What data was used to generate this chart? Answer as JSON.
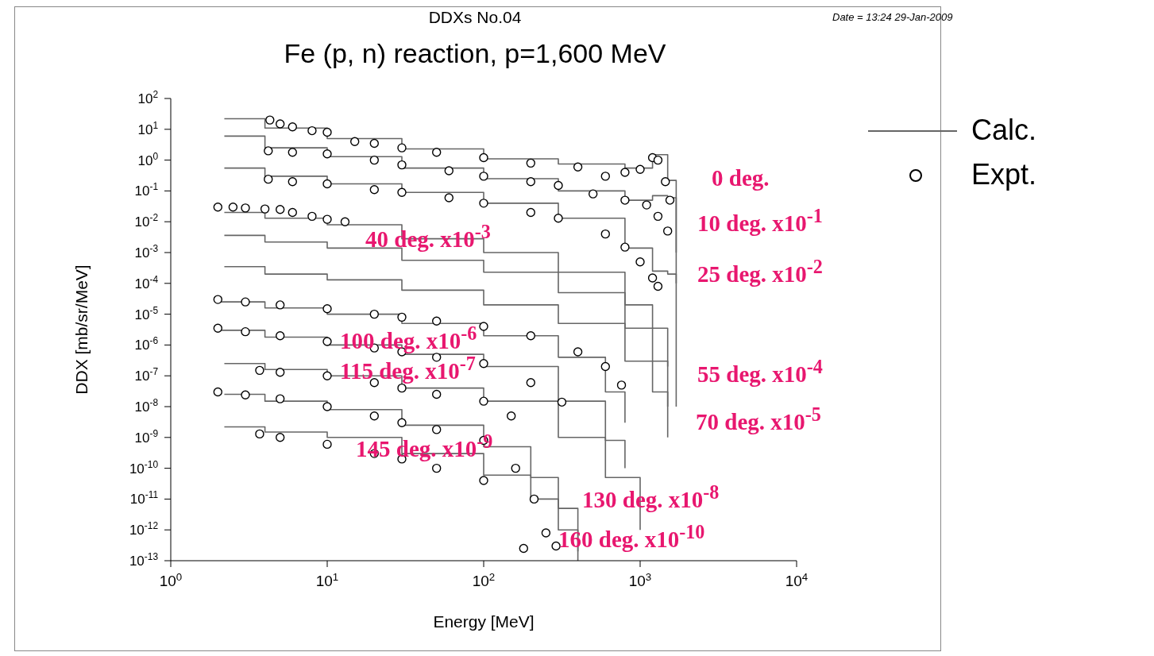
{
  "chart_data": {
    "type": "step",
    "title": "DDXs No.04",
    "subtitle": "Fe (p, n) reaction, p=1,600 MeV",
    "xlabel": "Energy [MeV]",
    "ylabel": "DDX [mb/sr/MeV]",
    "log": "xy",
    "legend": "right",
    "marker": "circle",
    "xlim": [
      1,
      10000
    ],
    "xticks": [
      {
        "value": 1,
        "label": "10$^{0}$"
      },
      {
        "value": 10,
        "label": "10$^{1}$"
      },
      {
        "value": 100,
        "label": "10$^{2}$"
      },
      {
        "value": 1000,
        "label": "10$^{3}$"
      },
      {
        "value": 10000,
        "label": "10$^{4}$"
      }
    ],
    "ylim": [
      1e-13,
      100
    ],
    "yticks": [
      {
        "value": 1e-13,
        "label": "10$^{-13}$"
      },
      {
        "value": 1e-12,
        "label": "10$^{-12}$"
      },
      {
        "value": 1e-11,
        "label": "10$^{-11}$"
      },
      {
        "value": 1e-10,
        "label": "10$^{-10}$"
      },
      {
        "value": 1e-09,
        "label": "10$^{-9}$"
      },
      {
        "value": 1e-08,
        "label": "10$^{-8}$"
      },
      {
        "value": 1e-07,
        "label": "10$^{-7}$"
      },
      {
        "value": 1e-06,
        "label": "10$^{-6}$"
      },
      {
        "value": 1e-05,
        "label": "10$^{-5}$"
      },
      {
        "value": 0.0001,
        "label": "10$^{-4}$"
      },
      {
        "value": 0.001,
        "label": "10$^{-3}$"
      },
      {
        "value": 0.01,
        "label": "10$^{-2}$"
      },
      {
        "value": 0.1,
        "label": "10$^{-1}$"
      },
      {
        "value": 1,
        "label": "10$^{0}$"
      },
      {
        "value": 10,
        "label": "10$^{1}$"
      },
      {
        "value": 100,
        "label": "10$^{2}$"
      }
    ],
    "annotations": [
      "Date = 13:24 29-Jan-2009",
      "0 deg.",
      "10 deg. x10$^{-1}$",
      "25 deg. x10$^{-2}$",
      "40 deg. x10$^{-3}$",
      "55 deg. x10$^{-4}$",
      "70 deg. x10$^{-5}$",
      "100 deg. x10$^{-6}$",
      "115 deg. x10$^{-7}$",
      "130 deg. x10$^{-8}$",
      "145 deg. x10$^{-9}$",
      "160 deg. x10$^{-10}$"
    ],
    "series": [
      {
        "name": "Calc.",
        "marker": "none",
        "color": "#666666",
        "x": [
          2.2,
          4,
          10,
          30,
          100,
          300,
          800,
          1200,
          1500,
          1700
        ],
        "values": [
          22,
          11,
          5,
          2.3,
          1.1,
          0.75,
          0.55,
          1.5,
          0.22,
          0.001
        ]
      },
      {
        "type": "scatter",
        "name": "Expt.",
        "color": "#000000",
        "x": [
          4.3,
          5,
          6,
          8,
          10,
          15,
          20,
          30,
          50,
          100,
          200,
          400,
          600,
          800,
          1000,
          1200,
          1300,
          1450,
          1550
        ],
        "values": [
          20,
          15,
          12,
          9,
          8,
          4,
          3.5,
          2.5,
          1.8,
          1.2,
          0.8,
          0.6,
          0.3,
          0.4,
          0.5,
          1.2,
          1.0,
          0.2,
          0.05
        ]
      },
      {
        "marker": "none",
        "color": "#666666",
        "x": [
          2.2,
          4,
          10,
          30,
          100,
          300,
          800,
          1200,
          1500,
          1700
        ],
        "values": [
          6,
          2.5,
          1.3,
          0.55,
          0.25,
          0.1,
          0.05,
          0.07,
          0.06,
          0.0001
        ]
      },
      {
        "type": "scatter",
        "color": "#000000",
        "x": [
          4.2,
          6,
          10,
          20,
          30,
          60,
          100,
          200,
          300,
          500,
          800,
          1100,
          1300,
          1500
        ],
        "values": [
          2,
          1.8,
          1.6,
          1,
          0.7,
          0.45,
          0.3,
          0.2,
          0.15,
          0.08,
          0.05,
          0.035,
          0.015,
          0.005
        ]
      },
      {
        "marker": "none",
        "color": "#666666",
        "x": [
          2.2,
          4,
          10,
          30,
          100,
          300,
          800,
          1200,
          1500,
          1700
        ],
        "values": [
          0.55,
          0.3,
          0.17,
          0.09,
          0.04,
          0.013,
          0.0014,
          0.00025,
          0.0002,
          1e-08
        ]
      },
      {
        "type": "scatter",
        "color": "#000000",
        "x": [
          4.2,
          6,
          10,
          20,
          30,
          60,
          100,
          200,
          300,
          600,
          800,
          1000,
          1200,
          1300
        ],
        "values": [
          0.24,
          0.2,
          0.17,
          0.11,
          0.09,
          0.06,
          0.04,
          0.02,
          0.013,
          0.004,
          0.0015,
          0.0005,
          0.00015,
          8e-05
        ]
      },
      {
        "marker": "none",
        "color": "#666666",
        "x": [
          2.2,
          4,
          10,
          30,
          100,
          300,
          800,
          1200,
          1500
        ],
        "values": [
          0.02,
          0.013,
          0.008,
          0.0028,
          0.001,
          0.00023,
          2e-05,
          3.5e-06,
          2e-07
        ]
      },
      {
        "type": "scatter",
        "color": "#000000",
        "x": [
          2,
          2.5,
          3,
          4,
          5,
          6,
          8,
          10,
          13
        ],
        "values": [
          0.03,
          0.03,
          0.028,
          0.026,
          0.025,
          0.02,
          0.015,
          0.012,
          0.01
        ]
      },
      {
        "marker": "none",
        "color": "#666666",
        "x": [
          2.2,
          4,
          10,
          30,
          100,
          300,
          800,
          1200,
          1500
        ],
        "values": [
          0.0036,
          0.0022,
          0.0014,
          0.00056,
          0.00023,
          5e-05,
          3.5e-06,
          3e-07,
          1e-08
        ]
      },
      {
        "marker": "none",
        "color": "#666666",
        "x": [
          2.2,
          4,
          10,
          30,
          100,
          300,
          800,
          1200,
          1500
        ],
        "values": [
          0.00035,
          0.0002,
          0.00013,
          6e-05,
          2e-05,
          5e-06,
          3e-07,
          3e-08,
          1e-09
        ]
      },
      {
        "marker": "none",
        "color": "#666666",
        "x": [
          2,
          4,
          10,
          30,
          100,
          300,
          600,
          800
        ],
        "values": [
          2.5e-05,
          1.6e-05,
          1e-05,
          5e-06,
          2e-06,
          4e-07,
          3e-08,
          3e-09
        ]
      },
      {
        "type": "scatter",
        "color": "#000000",
        "x": [
          2,
          3,
          5,
          10,
          20,
          30,
          50,
          100,
          200,
          400,
          600,
          760
        ],
        "values": [
          3e-05,
          2.5e-05,
          2e-05,
          1.5e-05,
          1e-05,
          8e-06,
          6e-06,
          4e-06,
          2e-06,
          6e-07,
          2e-07,
          5e-08
        ]
      },
      {
        "marker": "none",
        "color": "#666666",
        "x": [
          2,
          4,
          10,
          30,
          100,
          300,
          600,
          800
        ],
        "values": [
          3e-06,
          1.8e-06,
          1e-06,
          5e-07,
          2e-07,
          1.5e-08,
          8e-10,
          1e-10
        ]
      },
      {
        "type": "scatter",
        "color": "#000000",
        "x": [
          2,
          3,
          5,
          10,
          20,
          30,
          50,
          100,
          200,
          316
        ],
        "values": [
          3.5e-06,
          2.7e-06,
          2e-06,
          1.3e-06,
          8e-07,
          6e-07,
          4e-07,
          2.5e-07,
          6e-08,
          1.4e-08
        ]
      },
      {
        "marker": "none",
        "color": "#666666",
        "x": [
          2.2,
          4,
          10,
          30,
          100,
          300,
          600,
          1000
        ],
        "values": [
          2.5e-07,
          1.6e-07,
          1e-07,
          4e-08,
          1.5e-08,
          1e-09,
          5e-11,
          1e-12
        ]
      },
      {
        "type": "scatter",
        "color": "#000000",
        "x": [
          3.7,
          5,
          10,
          20,
          30,
          50,
          100,
          150
        ],
        "values": [
          1.5e-07,
          1.3e-07,
          1e-07,
          6e-08,
          4e-08,
          2.5e-08,
          1.5e-08,
          5e-09
        ]
      },
      {
        "marker": "none",
        "color": "#666666",
        "x": [
          2.2,
          4,
          10,
          30,
          100,
          200,
          300,
          400
        ],
        "values": [
          2.5e-08,
          1.5e-08,
          8e-09,
          2.5e-09,
          5e-10,
          5e-11,
          5e-12,
          2e-13
        ]
      },
      {
        "type": "scatter",
        "color": "#000000",
        "x": [
          2,
          3,
          5,
          10,
          20,
          30,
          50,
          100,
          160,
          210
        ],
        "values": [
          3e-08,
          2.4e-08,
          1.8e-08,
          1e-08,
          5e-09,
          3e-09,
          1.8e-09,
          8e-10,
          1e-10,
          1e-11
        ]
      },
      {
        "marker": "none",
        "color": "#666666",
        "x": [
          2.2,
          4,
          10,
          30,
          100,
          200,
          300,
          400
        ],
        "values": [
          2.2e-09,
          1.5e-09,
          1e-09,
          3e-10,
          6e-11,
          1e-11,
          1e-12,
          1e-13
        ]
      },
      {
        "type": "scatter",
        "color": "#000000",
        "x": [
          3.7,
          5,
          10,
          20,
          30,
          50,
          100,
          180,
          250,
          290
        ],
        "values": [
          1.3e-09,
          1e-09,
          6e-10,
          3e-10,
          2e-10,
          1e-10,
          4e-11,
          2.5e-13,
          8e-13,
          3e-13
        ]
      }
    ]
  }
}
